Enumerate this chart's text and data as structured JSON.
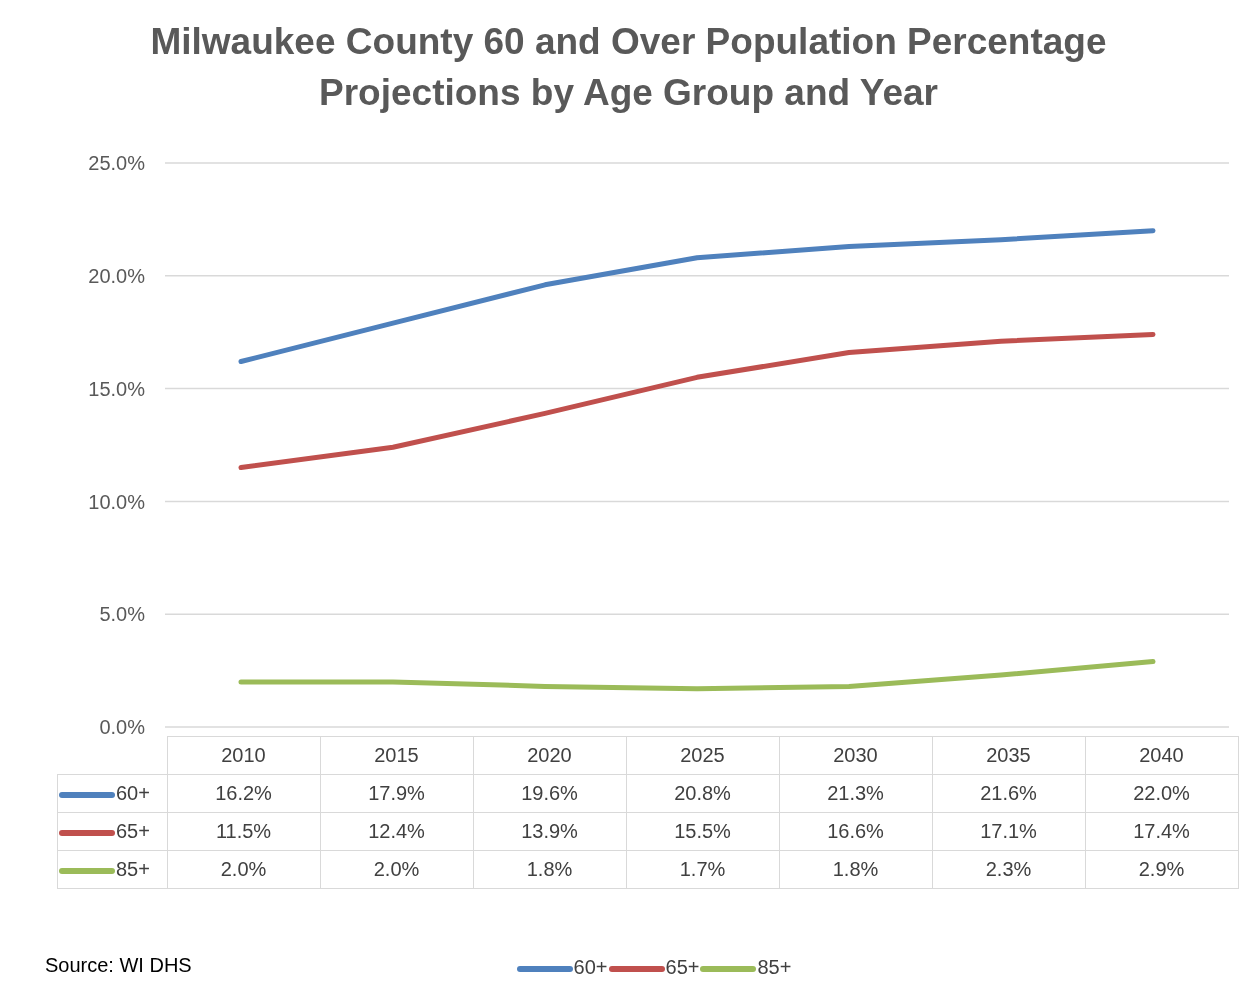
{
  "chart_data": {
    "type": "line",
    "title": "Milwaukee County 60 and Over Population Percentage Projections by Age Group and Year",
    "categories": [
      "2010",
      "2015",
      "2020",
      "2025",
      "2030",
      "2035",
      "2040"
    ],
    "series": [
      {
        "name": "60+",
        "color": "#4f81bd",
        "values": [
          16.2,
          17.9,
          19.6,
          20.8,
          21.3,
          21.6,
          22.0
        ],
        "value_labels": [
          "16.2%",
          "17.9%",
          "19.6%",
          "20.8%",
          "21.3%",
          "21.6%",
          "22.0%"
        ]
      },
      {
        "name": "65+",
        "color": "#c0504d",
        "values": [
          11.5,
          12.4,
          13.9,
          15.5,
          16.6,
          17.1,
          17.4
        ],
        "value_labels": [
          "11.5%",
          "12.4%",
          "13.9%",
          "15.5%",
          "16.6%",
          "17.1%",
          "17.4%"
        ]
      },
      {
        "name": "85+",
        "color": "#9bbb59",
        "values": [
          2.0,
          2.0,
          1.8,
          1.7,
          1.8,
          2.3,
          2.9
        ],
        "value_labels": [
          "2.0%",
          "2.0%",
          "1.8%",
          "1.7%",
          "1.8%",
          "2.3%",
          "2.9%"
        ]
      }
    ],
    "ylim": [
      0,
      25
    ],
    "yticks": [
      {
        "value": 0,
        "label": "0.0%"
      },
      {
        "value": 5,
        "label": "5.0%"
      },
      {
        "value": 10,
        "label": "10.0%"
      },
      {
        "value": 15,
        "label": "15.0%"
      },
      {
        "value": 20,
        "label": "20.0%"
      },
      {
        "value": 25,
        "label": "25.0%"
      }
    ],
    "grid": "y",
    "legend": "bottom",
    "marker": "none",
    "line_style": "solid",
    "annotations": [
      "Source: WI DHS"
    ]
  }
}
